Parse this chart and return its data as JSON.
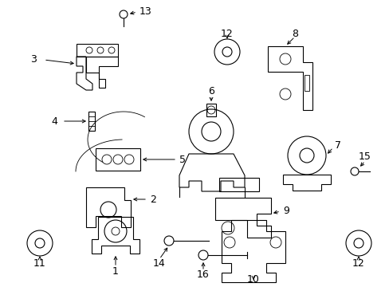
{
  "bg_color": "#ffffff",
  "line_color": "#000000",
  "text_color": "#000000",
  "fig_w": 4.89,
  "fig_h": 3.6,
  "dpi": 100
}
